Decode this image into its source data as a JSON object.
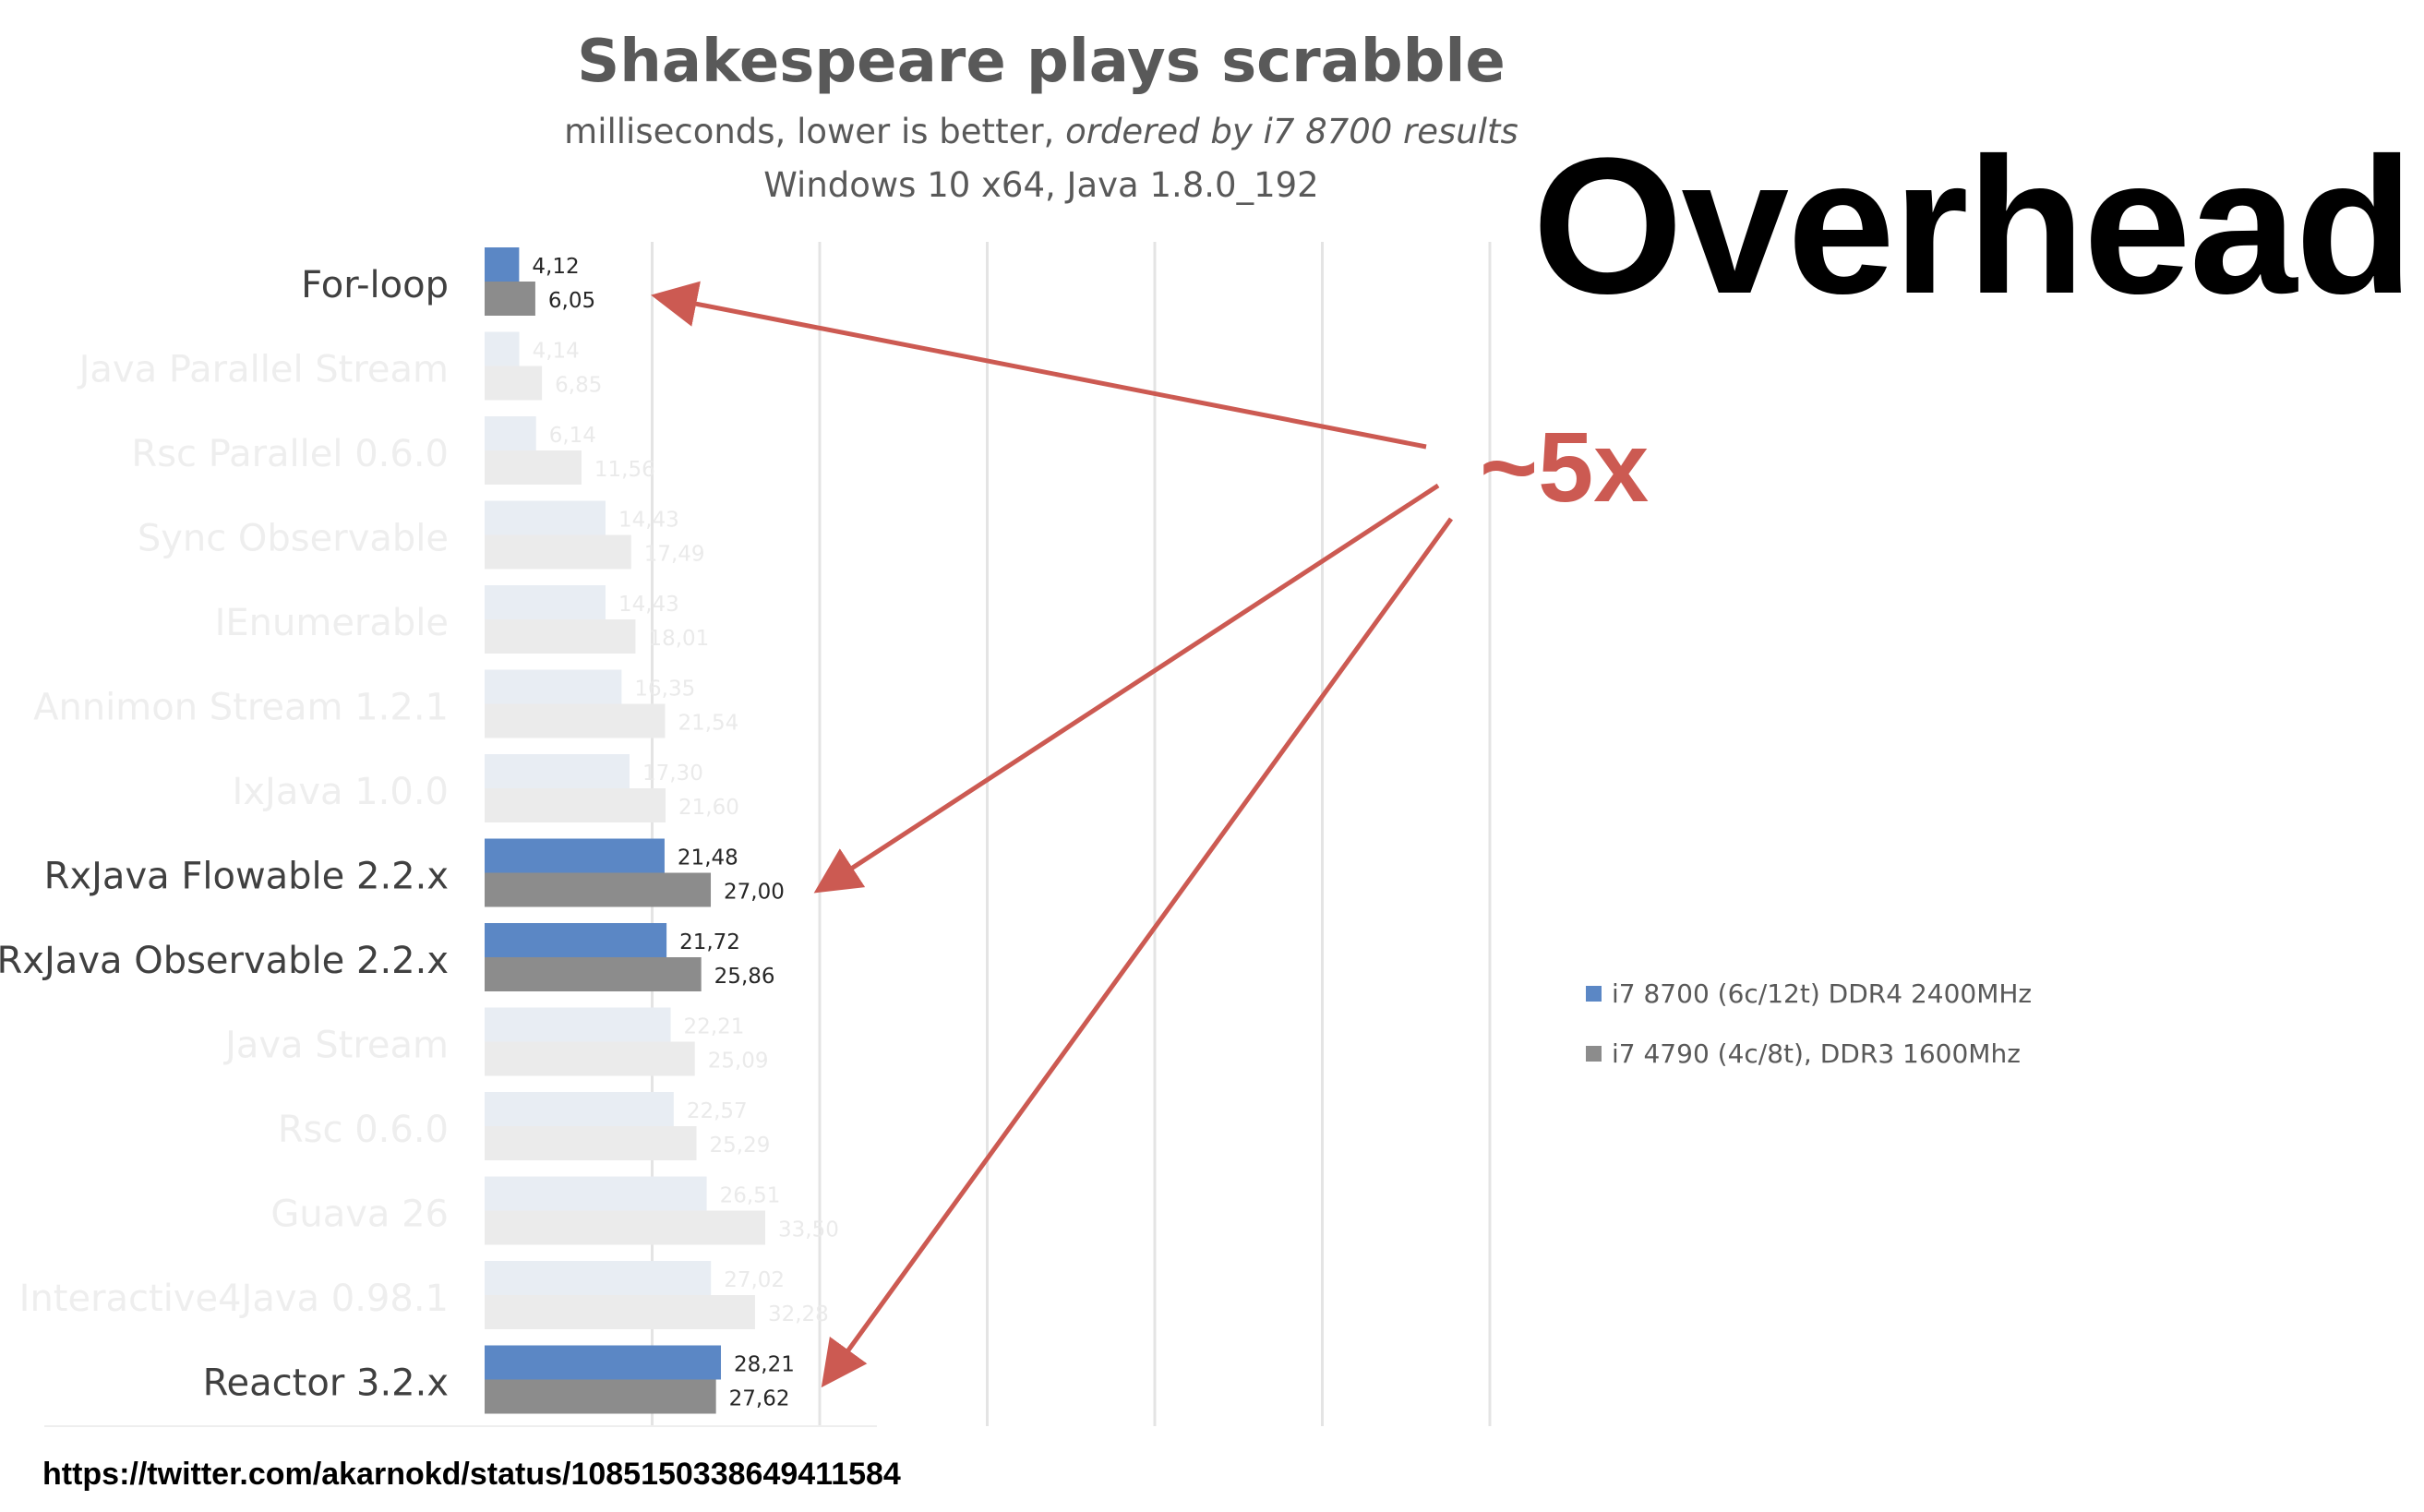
{
  "chart_data": {
    "type": "bar",
    "orientation": "horizontal",
    "title": "Shakespeare plays scrabble",
    "subtitle_plain": "milliseconds, lower is better, ",
    "subtitle_italic": "ordered by i7 8700 results",
    "subtitle_line2": "Windows 10 x64, Java 1.8.0_192",
    "categories": [
      "For-loop",
      "Java Parallel Stream",
      "Rsc Parallel 0.6.0",
      "Sync Observable",
      "IEnumerable",
      "Annimon Stream 1.2.1",
      "IxJava 1.0.0",
      "RxJava Flowable 2.2.x",
      "RxJava Observable 2.2.x",
      "Java Stream",
      "Rsc 0.6.0",
      "Guava 26",
      "Interactive4Java 0.98.1",
      "Reactor 3.2.x"
    ],
    "highlighted": [
      true,
      false,
      false,
      false,
      false,
      false,
      false,
      true,
      true,
      false,
      false,
      false,
      false,
      true
    ],
    "series": [
      {
        "name": "i7 8700 (6c/12t) DDR4 2400MHz",
        "color": "#5b87c5",
        "values": [
          4.12,
          4.14,
          6.14,
          14.43,
          14.43,
          16.35,
          17.3,
          21.48,
          21.72,
          22.21,
          22.57,
          26.51,
          27.02,
          28.21
        ],
        "labels": [
          "4,12",
          "4,14",
          "6,14",
          "14,43",
          "14,43",
          "16,35",
          "17,30",
          "21,48",
          "21,72",
          "22,21",
          "22,57",
          "26,51",
          "27,02",
          "28,21"
        ]
      },
      {
        "name": "i7 4790 (4c/8t), DDR3 1600Mhz",
        "color": "#8c8c8c",
        "values": [
          6.05,
          6.85,
          11.56,
          17.49,
          18.01,
          21.54,
          21.6,
          27.0,
          25.86,
          25.09,
          25.29,
          33.5,
          32.28,
          27.62
        ],
        "labels": [
          "6,05",
          "6,85",
          "11,56",
          "17,49",
          "18,01",
          "21,54",
          "21,60",
          "27,00",
          "25,86",
          "25,09",
          "25,29",
          "33,50",
          "32,28",
          "27,62"
        ]
      }
    ],
    "xlim": [
      0,
      120
    ],
    "gridlines": true,
    "legend_position": "right",
    "faded_color": "#e9ecef"
  },
  "annotation": {
    "heading": "Overhead",
    "ratio": "~5x",
    "arrow_color": "#cc5a52",
    "arrow_targets": [
      "For-loop",
      "RxJava Flowable 2.2.x",
      "Reactor 3.2.x"
    ]
  },
  "footer": {
    "source_url": "https://twitter.com/akarnokd/status/1085150338649411584"
  }
}
